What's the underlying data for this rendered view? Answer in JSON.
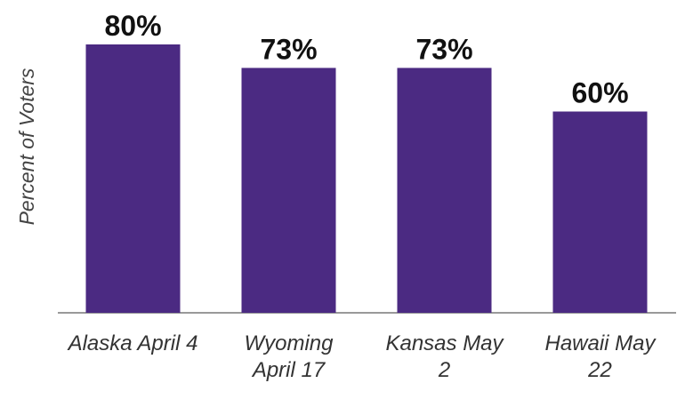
{
  "chart_data": {
    "type": "bar",
    "y_label": "Percent of Voters",
    "categories": [
      "Alaska April 4",
      "Wyoming April 17",
      "Kansas May 2",
      "Hawaii May 22"
    ],
    "values": [
      80,
      73,
      73,
      60
    ],
    "value_labels": [
      "80%",
      "73%",
      "73%",
      "60%"
    ],
    "color": "#4b2a82",
    "ylim": [
      0,
      80
    ]
  }
}
